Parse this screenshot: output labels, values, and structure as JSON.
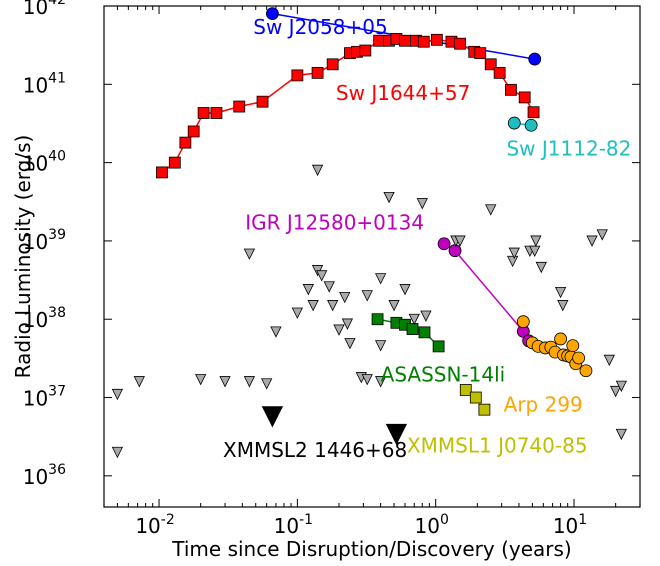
{
  "chart_data": {
    "type": "scatter",
    "x_scale": "log",
    "y_scale": "log",
    "xlabel": "Time since Disruption/Discovery (years)",
    "ylabel": "Radio Luminosity (erg/s)",
    "xlim": [
      0.004,
      30
    ],
    "ylim": [
      4e+35,
      1e+42
    ],
    "x_ticks": [
      {
        "value": 0.01,
        "base": "10",
        "exp": "-2"
      },
      {
        "value": 0.1,
        "base": "10",
        "exp": "-1"
      },
      {
        "value": 1,
        "base": "10",
        "exp": "0"
      },
      {
        "value": 10,
        "base": "10",
        "exp": "1"
      }
    ],
    "y_ticks": [
      {
        "value": 1e+36,
        "base": "10",
        "exp": "36"
      },
      {
        "value": 1e+37,
        "base": "10",
        "exp": "37"
      },
      {
        "value": 1e+38,
        "base": "10",
        "exp": "38"
      },
      {
        "value": 1e+39,
        "base": "10",
        "exp": "39"
      },
      {
        "value": 1e+40,
        "base": "10",
        "exp": "40"
      },
      {
        "value": 1e+41,
        "base": "10",
        "exp": "41"
      },
      {
        "value": 1e+42,
        "base": "10",
        "exp": "42"
      }
    ],
    "series": [
      {
        "name": "Sw J2058+05",
        "color": "#0000ff",
        "marker": "circle",
        "connected": true,
        "label_pos": [
          0.048,
          4.4e+41
        ],
        "points": [
          [
            0.066,
            8e+41
          ],
          [
            5.2,
            2.1e+41
          ]
        ]
      },
      {
        "name": "Sw J1644+57",
        "color": "#ff0000",
        "marker": "square",
        "connected": true,
        "label_pos": [
          0.19,
          6.3e+40
        ],
        "points": [
          [
            0.0105,
            7.5e+39
          ],
          [
            0.013,
            1e+40
          ],
          [
            0.0155,
            1.8e+40
          ],
          [
            0.0178,
            2.5e+40
          ],
          [
            0.021,
            4.3e+40
          ],
          [
            0.026,
            4.3e+40
          ],
          [
            0.038,
            5.2e+40
          ],
          [
            0.056,
            6e+40
          ],
          [
            0.1,
            1.3e+41
          ],
          [
            0.14,
            1.4e+41
          ],
          [
            0.18,
            1.8e+41
          ],
          [
            0.24,
            2.5e+41
          ],
          [
            0.27,
            2.6e+41
          ],
          [
            0.31,
            2.7e+41
          ],
          [
            0.39,
            3.6e+41
          ],
          [
            0.46,
            3.6e+41
          ],
          [
            0.52,
            3.8e+41
          ],
          [
            0.6,
            3.6e+41
          ],
          [
            0.72,
            3.6e+41
          ],
          [
            0.82,
            3.5e+41
          ],
          [
            1.02,
            3.7e+41
          ],
          [
            1.3,
            3.5e+41
          ],
          [
            1.5,
            3.3e+41
          ],
          [
            1.9,
            2.6e+41
          ],
          [
            2.1,
            2.5e+41
          ],
          [
            2.5,
            1.8e+41
          ],
          [
            2.9,
            1.4e+41
          ],
          [
            3.5,
            8.5e+40
          ],
          [
            4.4,
            6.8e+40
          ],
          [
            5.1,
            4.4e+40
          ]
        ]
      },
      {
        "name": "Sw J1112-82",
        "color": "#1fbfbf",
        "marker": "circle",
        "connected": true,
        "label_pos": [
          3.25,
          1.23e+40
        ],
        "points": [
          [
            3.7,
            3.2e+40
          ],
          [
            4.9,
            3e+40
          ]
        ]
      },
      {
        "name": "IGR J12580+0134",
        "color": "#bf00bf",
        "marker": "circle",
        "connected": true,
        "label_pos": [
          0.042,
          1.4e+39
        ],
        "points": [
          [
            1.15,
            9.2e+38
          ],
          [
            1.38,
            7.5e+38
          ],
          [
            4.3,
            7e+37
          ],
          [
            4.7,
            5.3e+37
          ]
        ]
      },
      {
        "name": "ASASSN-14li",
        "color": "#007f00",
        "marker": "square",
        "connected": true,
        "label_pos": [
          0.4,
          1.6e+37
        ],
        "points": [
          [
            0.38,
            1e+38
          ],
          [
            0.52,
            9e+37
          ],
          [
            0.6,
            8.5e+37
          ],
          [
            0.68,
            7.5e+37
          ],
          [
            0.83,
            6.8e+37
          ],
          [
            1.05,
            4.5e+37
          ]
        ]
      },
      {
        "name": "Arp 299",
        "color": "#ffa500",
        "marker": "circle",
        "connected": false,
        "label_pos": [
          3.1,
          6.6e+36
        ],
        "points": [
          [
            4.3,
            9.3e+37
          ],
          [
            5.0,
            5e+37
          ],
          [
            5.5,
            4.5e+37
          ],
          [
            6.2,
            4.3e+37
          ],
          [
            6.8,
            4.4e+37
          ],
          [
            7.3,
            3.8e+37
          ],
          [
            8.0,
            5.6e+37
          ],
          [
            8.4,
            3.5e+37
          ],
          [
            9.0,
            3.4e+37
          ],
          [
            9.5,
            3.3e+37
          ],
          [
            10.3,
            2.7e+37
          ],
          [
            10.8,
            3.2e+37
          ],
          [
            12.2,
            2.2e+37
          ],
          [
            9.8,
            4.6e+37
          ]
        ]
      },
      {
        "name": "XMMSL1 J0740-85",
        "color": "#bfbf00",
        "marker": "square",
        "connected": false,
        "label_pos": [
          0.62,
          2e+36
        ],
        "points": [
          [
            1.65,
            1.25e+37
          ],
          [
            1.95,
            1e+37
          ],
          [
            2.25,
            7e+36
          ]
        ]
      },
      {
        "name": "XMMSL2 1446+68",
        "color": "#000000",
        "marker": "triangle-big",
        "connected": false,
        "label_pos": [
          0.029,
          1.75e+36
        ],
        "points": [
          [
            0.066,
            5.7e+36
          ],
          [
            0.52,
            3.4e+36
          ]
        ]
      },
      {
        "name": "",
        "color": "#aaaaaa",
        "marker": "triangle",
        "connected": false,
        "points": [
          [
            0.005,
            1.1e+37
          ],
          [
            0.005,
            2e+36
          ],
          [
            0.0072,
            1.6e+37
          ],
          [
            0.02,
            1.7e+37
          ],
          [
            0.03,
            1.6e+37
          ],
          [
            0.045,
            6.8e+38
          ],
          [
            0.045,
            1.6e+37
          ],
          [
            0.06,
            1.5e+37
          ],
          [
            0.07,
            6.9e+37
          ],
          [
            0.14,
            4.2e+38
          ],
          [
            0.14,
            8e+39
          ],
          [
            0.15,
            3.6e+38
          ],
          [
            0.1,
            1.2e+38
          ],
          [
            0.12,
            2.4e+38
          ],
          [
            0.13,
            1.5e+38
          ],
          [
            0.17,
            2.6e+38
          ],
          [
            0.18,
            1.5e+38
          ],
          [
            0.2,
            7.3e+37
          ],
          [
            0.22,
            1.9e+38
          ],
          [
            0.23,
            8.7e+37
          ],
          [
            0.24,
            4.9e+37
          ],
          [
            0.29,
            1.8e+37
          ],
          [
            0.32,
            1.7e+37
          ],
          [
            0.32,
            2e+38
          ],
          [
            0.4,
            1.6e+37
          ],
          [
            0.4,
            3.3e+38
          ],
          [
            0.4,
            4.6e+37
          ],
          [
            0.46,
            3.6e+39
          ],
          [
            0.5,
            1.5e+38
          ],
          [
            0.6,
            2.4e+38
          ],
          [
            0.8,
            3e+39
          ],
          [
            0.85,
            1.1e+38
          ],
          [
            0.7,
            1e+38
          ],
          [
            1.4,
            1e+39
          ],
          [
            1.5,
            1e+39
          ],
          [
            2.5,
            2.5e+39
          ],
          [
            3.6,
            5.5e+38
          ],
          [
            3.7,
            7e+38
          ],
          [
            4.8,
            7.4e+38
          ],
          [
            5.2,
            7.4e+38
          ],
          [
            5.3,
            1e+39
          ],
          [
            5.8,
            4.6e+38
          ],
          [
            8.0,
            2.2e+38
          ],
          [
            8.3,
            1.5e+38
          ],
          [
            13.5,
            1e+39
          ],
          [
            16.0,
            1.2e+39
          ],
          [
            20.0,
            1.2e+37
          ],
          [
            22.0,
            1.4e+37
          ],
          [
            22.0,
            3.4e+36
          ],
          [
            18.0,
            3e+37
          ]
        ]
      }
    ]
  }
}
